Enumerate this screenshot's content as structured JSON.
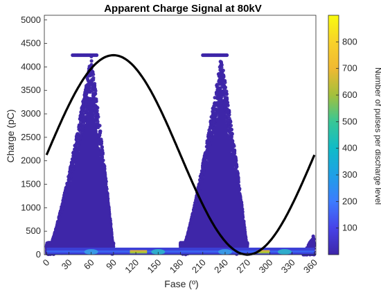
{
  "chart_data": {
    "type": "scatter",
    "title": "Apparent Charge Signal  at 80kV",
    "xlabel": "Fase (º)",
    "ylabel": "Charge (pC)",
    "xlim": [
      -3,
      362
    ],
    "ylim": [
      0,
      5100
    ],
    "xticks": [
      0,
      30,
      60,
      90,
      120,
      150,
      180,
      210,
      240,
      270,
      300,
      330,
      360
    ],
    "yticks": [
      0,
      500,
      1000,
      1500,
      2000,
      2500,
      3000,
      3500,
      4000,
      4500,
      5000
    ],
    "grid": false,
    "colorbar": {
      "label": "Number of pulses per discharge level",
      "range": [
        0,
        900
      ],
      "ticks": [
        100,
        200,
        300,
        400,
        500,
        600,
        700,
        800
      ],
      "colormap": [
        "#3e26a8",
        "#4743e8",
        "#3d7cfe",
        "#1fa0e6",
        "#10bbc8",
        "#38c796",
        "#a3c03c",
        "#f0b932",
        "#f8d22a",
        "#f9fb0e"
      ]
    },
    "series": [
      {
        "kind": "scatter-density",
        "clusters": [
          {
            "phase_range": [
              0,
              90
            ],
            "peak_phase": 60,
            "max_charge": 4250
          },
          {
            "phase_range": [
              180,
              270
            ],
            "peak_phase": 235,
            "max_charge": 4250
          }
        ],
        "low_level_band": {
          "charge_max": 150,
          "hot_phases": [
            60,
            150,
            240,
            320
          ]
        },
        "edge_clusters": [
          {
            "phase_range": [
              345,
              360
            ],
            "max_charge": 450
          }
        ]
      },
      {
        "kind": "reference-sine",
        "color": "#000000",
        "amplitude": 2125,
        "offset": 2125,
        "peak_phase": 90
      }
    ]
  }
}
